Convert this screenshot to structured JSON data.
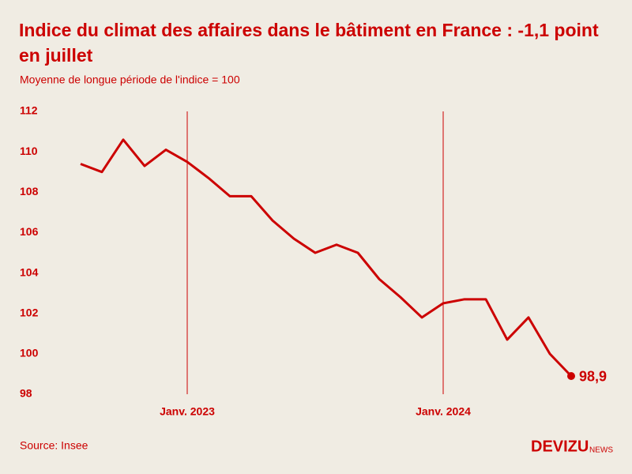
{
  "chart_data": {
    "type": "line",
    "title": "Indice du climat des affaires dans le bâtiment en France : -1,1 point en juillet",
    "subtitle": "Moyenne de longue période de l'indice = 100",
    "categories": [
      null,
      null,
      null,
      null,
      null,
      "Janv. 2023",
      null,
      null,
      null,
      null,
      null,
      null,
      null,
      null,
      null,
      null,
      null,
      "Janv. 2024",
      null,
      null,
      null,
      null,
      null,
      null
    ],
    "series": [
      {
        "name": "Indice",
        "color": "#cc0000",
        "values": [
          109.4,
          109.0,
          110.6,
          109.3,
          110.1,
          109.5,
          108.7,
          107.8,
          107.8,
          106.6,
          105.7,
          105.0,
          105.4,
          105.0,
          103.7,
          102.8,
          101.8,
          102.5,
          102.7,
          102.7,
          100.7,
          101.8,
          100.0,
          98.9
        ],
        "value_labels": [
          null,
          null,
          null,
          null,
          null,
          null,
          null,
          null,
          null,
          null,
          null,
          null,
          null,
          null,
          null,
          null,
          null,
          null,
          null,
          null,
          null,
          null,
          null,
          "98,9"
        ]
      }
    ],
    "ylim": [
      98,
      112
    ],
    "yticks": [
      98,
      100,
      102,
      104,
      106,
      108,
      110,
      112
    ],
    "grid": false,
    "source": "Source: Insee",
    "logo": "DEVIZU",
    "logo_suffix": "NEWS"
  }
}
